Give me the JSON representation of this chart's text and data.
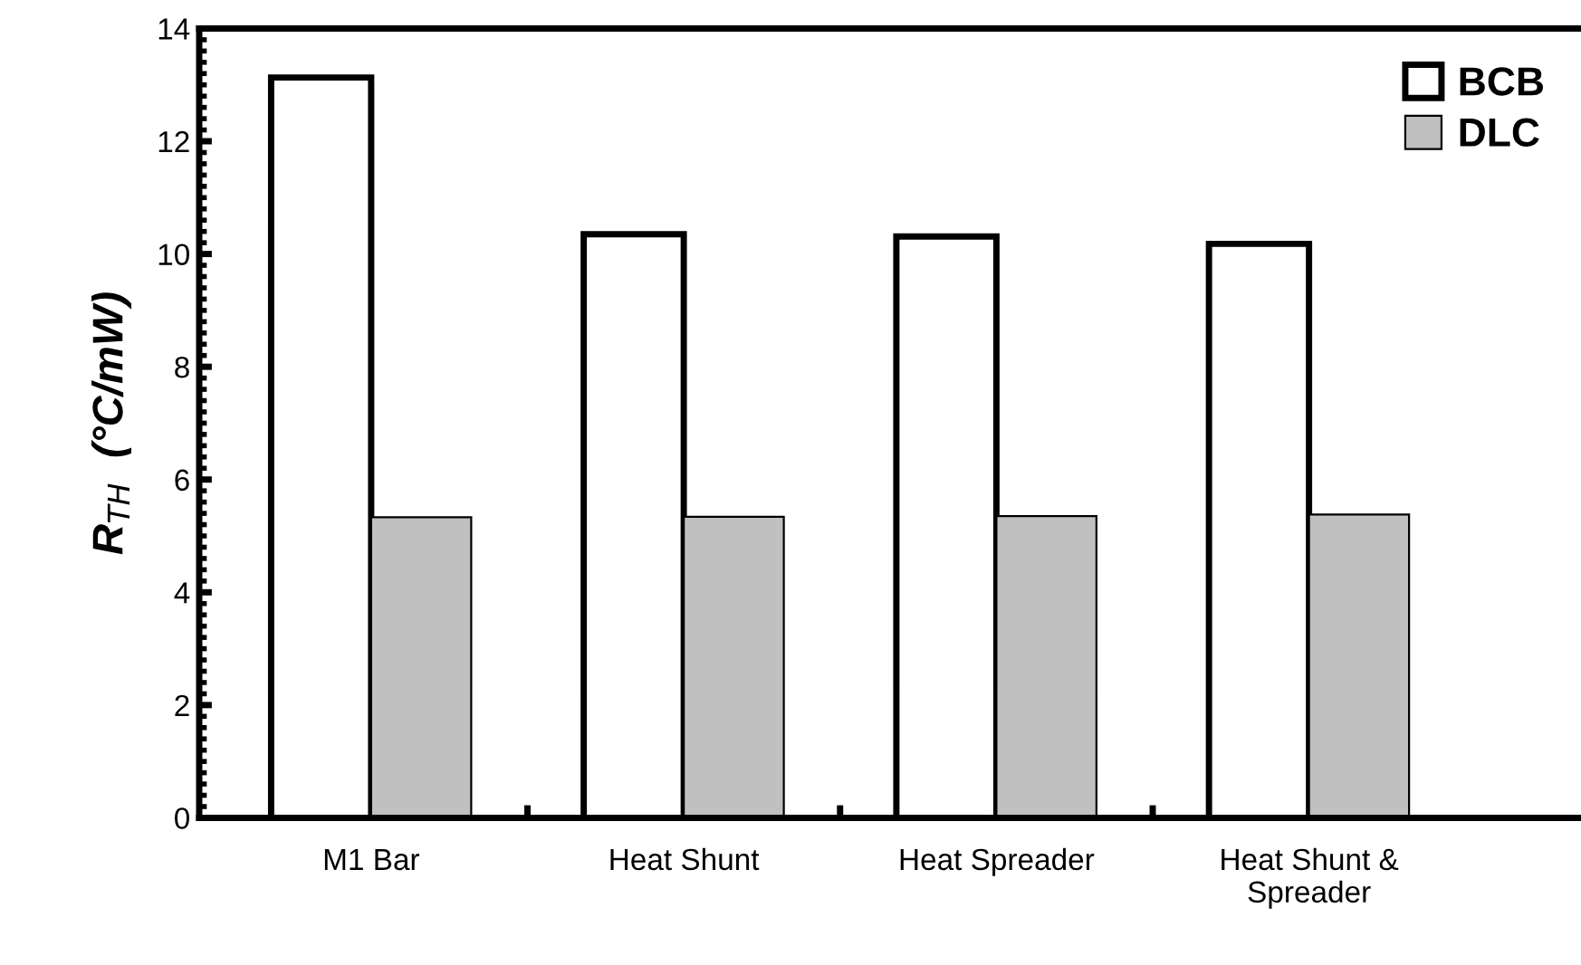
{
  "chart_data": {
    "type": "bar",
    "categories": [
      "M1 Bar",
      "Heat Shunt",
      "Heat Spreader",
      "Heat Shunt &\nSpreader"
    ],
    "ylabel": "R$_{TH}$  (°C/mW)",
    "series": [
      {
        "name": "BCB",
        "color": "#ffffff",
        "values": [
          13.13,
          10.35,
          10.31,
          10.18
        ]
      },
      {
        "name": "DLC",
        "color": "#c0c0c0",
        "values": [
          5.33,
          5.34,
          5.35,
          5.38
        ]
      }
    ],
    "ylim": [
      0,
      14
    ],
    "yticks": [
      0,
      2,
      4,
      6,
      8,
      10,
      12,
      14
    ],
    "grid": false,
    "legend": "top right"
  }
}
